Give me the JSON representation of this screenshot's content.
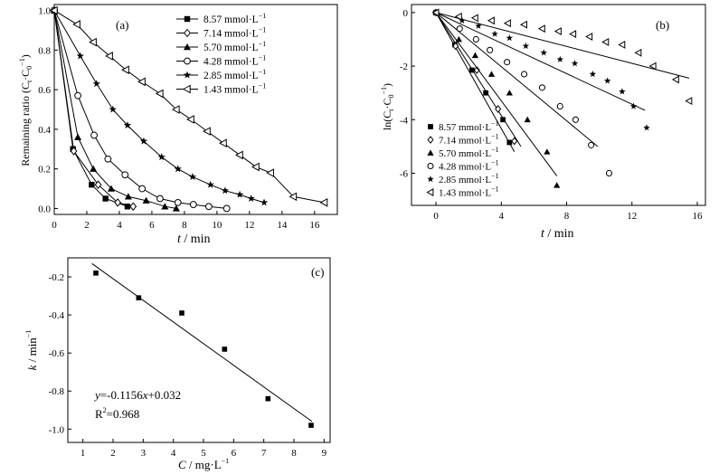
{
  "chart_data": [
    {
      "panel": "(a)",
      "type": "line",
      "xlabel_symbol": "t",
      "xlabel_unit": " / min",
      "ylabel": "Remaining ratio (C",
      "ylabel_sub1": "t",
      "ylabel_mid": "·C",
      "ylabel_sub2": "0",
      "ylabel_sup": "−1",
      "ylabel_end": ")",
      "xlim": [
        0,
        17.4
      ],
      "ylim": [
        -0.03,
        1.03
      ],
      "xticks": [
        0,
        2,
        4,
        6,
        8,
        10,
        12,
        14,
        16
      ],
      "yticks": [
        0.0,
        0.2,
        0.4,
        0.6,
        0.8,
        1.0
      ],
      "yticklabels": [
        "0.0",
        "0.2",
        "0.4",
        "0.6",
        "0.8",
        "1.0"
      ],
      "legend_position": "top-right",
      "series": [
        {
          "name": "8.57 mmol·L",
          "sup": "−1",
          "marker": "square-filled",
          "x": [
            0,
            1.15,
            2.3,
            3.15,
            4.5
          ],
          "y": [
            1.0,
            0.3,
            0.12,
            0.05,
            0.01
          ]
        },
        {
          "name": "7.14 mmol·L",
          "sup": "−1",
          "marker": "diamond-open",
          "x": [
            0,
            1.2,
            2.7,
            3.9,
            4.85
          ],
          "y": [
            1.0,
            0.29,
            0.12,
            0.03,
            0.01
          ]
        },
        {
          "name": "5.70 mmol·L",
          "sup": "−1",
          "marker": "triangle-filled",
          "x": [
            0,
            1.45,
            2.4,
            3.5,
            4.55,
            5.65,
            6.8,
            7.5
          ],
          "y": [
            1.0,
            0.36,
            0.2,
            0.1,
            0.06,
            0.04,
            0.01,
            0.0
          ]
        },
        {
          "name": "4.28 mmol·L",
          "sup": "−1",
          "marker": "circle-open",
          "x": [
            0,
            1.45,
            2.45,
            3.3,
            4.35,
            5.4,
            6.5,
            7.6,
            8.55,
            9.5,
            10.6
          ],
          "y": [
            1.0,
            0.57,
            0.37,
            0.25,
            0.17,
            0.1,
            0.05,
            0.03,
            0.02,
            0.01,
            0.0
          ]
        },
        {
          "name": "2.85 mmol·L",
          "sup": "−1",
          "marker": "star-filled",
          "x": [
            0,
            1.6,
            2.6,
            3.6,
            4.5,
            5.5,
            6.6,
            7.6,
            8.5,
            9.6,
            10.5,
            11.4,
            12.1,
            12.9
          ],
          "y": [
            1.0,
            0.77,
            0.63,
            0.5,
            0.42,
            0.34,
            0.26,
            0.2,
            0.16,
            0.12,
            0.09,
            0.07,
            0.05,
            0.03
          ]
        },
        {
          "name": "1.43 mmol·L",
          "sup": "−1",
          "marker": "triangle-left-open",
          "x": [
            0,
            1.4,
            2.4,
            3.4,
            4.4,
            5.4,
            6.5,
            7.5,
            8.4,
            9.4,
            10.4,
            11.4,
            12.4,
            13.3,
            14.7,
            16.6
          ],
          "y": [
            1.0,
            0.93,
            0.84,
            0.77,
            0.7,
            0.64,
            0.58,
            0.5,
            0.45,
            0.39,
            0.33,
            0.27,
            0.21,
            0.18,
            0.06,
            0.03
          ]
        }
      ]
    },
    {
      "panel": "(b)",
      "type": "scatter",
      "xlabel_symbol": "t",
      "xlabel_unit": " / min",
      "ylabel": "ln(C",
      "ylabel_sub1": "t",
      "ylabel_mid": "·C",
      "ylabel_sub2": "0",
      "ylabel_sup": "−1",
      "ylabel_end": ")",
      "xlim": [
        -1.5,
        16.5
      ],
      "ylim": [
        -7.2,
        0.3
      ],
      "xticks": [
        0,
        4,
        8,
        12,
        16
      ],
      "yticks": [
        0,
        -2,
        -4,
        -6
      ],
      "legend_position": "bottom-left",
      "series": [
        {
          "name": "8.57 mmol·L",
          "sup": "−1",
          "marker": "square-filled",
          "x": [
            0,
            1.15,
            2.2,
            3.05,
            4.1,
            4.5
          ],
          "y": [
            0,
            -1.2,
            -2.15,
            -3.0,
            -4.0,
            -4.85
          ],
          "fit": [
            [
              0,
              0
            ],
            [
              4.8,
              -5.2
            ]
          ]
        },
        {
          "name": "7.14 mmol·L",
          "sup": "−1",
          "marker": "diamond-open",
          "x": [
            0,
            1.2,
            2.5,
            3.8,
            4.8
          ],
          "y": [
            0,
            -1.25,
            -2.15,
            -3.6,
            -4.8
          ],
          "fit": [
            [
              0,
              0
            ],
            [
              5.2,
              -5.0
            ]
          ]
        },
        {
          "name": "5.70 mmol·L",
          "sup": "−1",
          "marker": "triangle-filled",
          "x": [
            0,
            1.4,
            2.4,
            3.4,
            4.5,
            5.6,
            6.8,
            7.4
          ],
          "y": [
            0,
            -1.0,
            -1.6,
            -2.3,
            -3.0,
            -4.0,
            -5.2,
            -6.45
          ],
          "fit": [
            [
              0,
              0
            ],
            [
              7.4,
              -6.1
            ]
          ]
        },
        {
          "name": "4.28 mmol·L",
          "sup": "−1",
          "marker": "circle-open",
          "x": [
            0,
            1.45,
            2.45,
            3.3,
            4.35,
            5.4,
            6.5,
            7.6,
            8.55,
            9.5,
            10.6
          ],
          "y": [
            0,
            -0.6,
            -1.0,
            -1.4,
            -1.85,
            -2.3,
            -2.8,
            -3.5,
            -4.0,
            -4.95,
            -6.0
          ],
          "fit": [
            [
              0,
              0
            ],
            [
              9.9,
              -5.0
            ]
          ]
        },
        {
          "name": "2.85 mmol·L",
          "sup": "−1",
          "marker": "star-filled",
          "x": [
            0,
            1.6,
            2.6,
            3.6,
            4.5,
            5.5,
            6.6,
            7.6,
            8.5,
            9.6,
            10.5,
            11.4,
            12.1,
            12.9
          ],
          "y": [
            0,
            -0.3,
            -0.5,
            -0.8,
            -0.95,
            -1.25,
            -1.5,
            -1.75,
            -1.9,
            -2.3,
            -2.55,
            -2.95,
            -3.5,
            -4.3
          ],
          "fit": [
            [
              0,
              0
            ],
            [
              12.8,
              -3.65
            ]
          ]
        },
        {
          "name": "1.43 mmol·L",
          "sup": "−1",
          "marker": "triangle-left-open",
          "x": [
            0,
            1.4,
            2.4,
            3.4,
            4.4,
            5.4,
            6.5,
            7.5,
            8.4,
            9.4,
            10.4,
            11.4,
            12.4,
            13.3,
            14.7,
            15.5
          ],
          "y": [
            0,
            -0.15,
            -0.2,
            -0.3,
            -0.4,
            -0.45,
            -0.6,
            -0.7,
            -0.8,
            -0.9,
            -1.1,
            -1.2,
            -1.5,
            -2.0,
            -2.5,
            -3.3
          ],
          "fit": [
            [
              0,
              0
            ],
            [
              15.5,
              -2.45
            ]
          ]
        }
      ]
    },
    {
      "panel": "(c)",
      "type": "scatter",
      "xlabel_symbol": "C",
      "xlabel_unit": " / mg·L",
      "xlabel_sup": "−1",
      "ylabel_symbol": "k",
      "ylabel_unit": " / min",
      "ylabel_sup": "−1",
      "xlim": [
        0.5,
        9.2
      ],
      "ylim": [
        -1.07,
        -0.1
      ],
      "xticks": [
        1,
        2,
        3,
        4,
        5,
        6,
        7,
        8,
        9
      ],
      "yticks": [
        -0.2,
        -0.4,
        -0.6,
        -0.8,
        -1.0
      ],
      "yticklabels": [
        "-0.2",
        "-0.4",
        "-0.6",
        "-0.8",
        "-1.0"
      ],
      "points": {
        "x": [
          1.43,
          2.85,
          4.28,
          5.7,
          7.14,
          8.57
        ],
        "y": [
          -0.18,
          -0.31,
          -0.39,
          -0.58,
          -0.84,
          -0.98
        ]
      },
      "fit": [
        [
          1.3,
          -0.13
        ],
        [
          8.6,
          -0.96
        ]
      ],
      "equation_prefix": "y",
      "equation_mid": "=-0.1156",
      "equation_var": "x",
      "equation_suffix": "+0.032",
      "r2_text": "R",
      "r2_sup": "2",
      "r2_value": "=0.968"
    }
  ]
}
